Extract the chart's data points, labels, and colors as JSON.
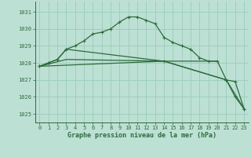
{
  "title": "Graphe pression niveau de la mer (hPa)",
  "bg_color": "#bde0d4",
  "grid_color": "#9ecfbe",
  "line_color": "#2d6b3c",
  "xlim": [
    -0.5,
    23.5
  ],
  "ylim": [
    1024.5,
    1031.6
  ],
  "yticks": [
    1025,
    1026,
    1027,
    1028,
    1029,
    1030,
    1031
  ],
  "xticks": [
    0,
    1,
    2,
    3,
    4,
    5,
    6,
    7,
    8,
    9,
    10,
    11,
    12,
    13,
    14,
    15,
    16,
    17,
    18,
    19,
    20,
    21,
    22,
    23
  ],
  "line1_x": [
    0,
    1,
    2,
    3,
    4,
    5,
    6,
    7,
    8,
    9,
    10,
    11,
    12,
    13,
    14,
    15,
    16,
    17,
    18,
    19,
    20,
    21,
    22,
    23
  ],
  "line1_y": [
    1027.8,
    1028.0,
    1028.2,
    1028.8,
    1029.0,
    1029.3,
    1029.7,
    1029.8,
    1030.0,
    1030.4,
    1030.7,
    1030.7,
    1030.5,
    1030.3,
    1029.5,
    1029.2,
    1029.0,
    1028.8,
    1028.3,
    1028.1,
    1028.1,
    1027.0,
    1026.9,
    1025.3
  ],
  "line2_x": [
    0,
    1,
    2,
    3,
    14,
    21,
    22,
    23
  ],
  "line2_y": [
    1027.8,
    1028.0,
    1028.2,
    1028.8,
    1028.1,
    1027.0,
    1026.0,
    1025.3
  ],
  "line3_x": [
    0,
    3,
    14,
    21,
    23
  ],
  "line3_y": [
    1027.8,
    1028.2,
    1028.1,
    1027.0,
    1025.3
  ],
  "line4_x": [
    0,
    14,
    20
  ],
  "line4_y": [
    1027.8,
    1028.1,
    1028.1
  ]
}
